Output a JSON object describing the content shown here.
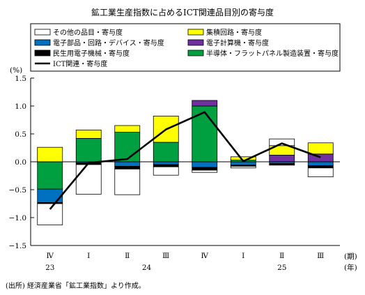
{
  "chart_data": {
    "type": "bar",
    "stacked": true,
    "title": "鉱工業生産指数に占めるICT関連品目別の寄与度",
    "ylabel": "(%)",
    "xlabel_period": "(期)",
    "xlabel_year": "(年)",
    "ylim": [
      -1.5,
      1.5
    ],
    "yticks": [
      -1.5,
      -1.0,
      -0.5,
      0.0,
      0.5,
      1.0,
      1.5
    ],
    "ytick_labels": [
      "−1.5",
      "−1.0",
      "−0.5",
      "0.0",
      "0.5",
      "1.0",
      "1.5"
    ],
    "categories": [
      "Ⅳ",
      "Ⅰ",
      "Ⅱ",
      "Ⅲ",
      "Ⅳ",
      "Ⅰ",
      "Ⅱ",
      "Ⅲ"
    ],
    "years": [
      {
        "label": "23",
        "start": 0,
        "end": 0
      },
      {
        "label": "24",
        "start": 1,
        "end": 4
      },
      {
        "label": "25",
        "start": 5,
        "end": 7
      }
    ],
    "series": [
      {
        "name": "半導体・フラットパネル製造装置・寄与度",
        "color": "#00a040",
        "values": [
          -0.49,
          0.42,
          0.53,
          0.35,
          1.0,
          0.03,
          0.0,
          0.0
        ]
      },
      {
        "name": "電子計算機・寄与度",
        "color": "#7030a0",
        "values": [
          0.0,
          0.0,
          0.0,
          0.0,
          0.1,
          0.0,
          0.12,
          0.14
        ]
      },
      {
        "name": "集積回路・寄与度",
        "color": "#ffff00",
        "values": [
          0.26,
          0.15,
          0.12,
          0.47,
          0.0,
          0.06,
          0.17,
          0.2
        ]
      },
      {
        "name": "電子部品・回路・デバイス・寄与度",
        "color": "#0070c0",
        "values": [
          -0.24,
          -0.02,
          -0.08,
          -0.05,
          -0.1,
          -0.06,
          -0.03,
          -0.07
        ]
      },
      {
        "name": "民生用電子機械・寄与度",
        "color": "#000000",
        "values": [
          -0.02,
          -0.03,
          -0.05,
          -0.04,
          -0.05,
          -0.02,
          -0.03,
          -0.04
        ]
      },
      {
        "name": "その他の品目・寄与度",
        "color": "#ffffff",
        "values": [
          -0.38,
          -0.53,
          -0.46,
          -0.15,
          -0.04,
          -0.03,
          0.12,
          -0.16
        ]
      }
    ],
    "line": {
      "name": "ICT関連・寄与度",
      "color": "#000000",
      "values": [
        -0.85,
        -0.02,
        0.05,
        0.58,
        0.89,
        0.01,
        0.33,
        0.08
      ]
    },
    "legend_order": [
      "その他の品目・寄与度",
      "集積回路・寄与度",
      "電子部品・回路・デバイス・寄与度",
      "電子計算機・寄与度",
      "民生用電子機械・寄与度",
      "半導体・フラットパネル製造装置・寄与度",
      "ICT関連・寄与度"
    ],
    "legend_position": "top",
    "grid": false
  },
  "source_note": "(出所) 経済産業省「鉱工業指数」より作成。"
}
